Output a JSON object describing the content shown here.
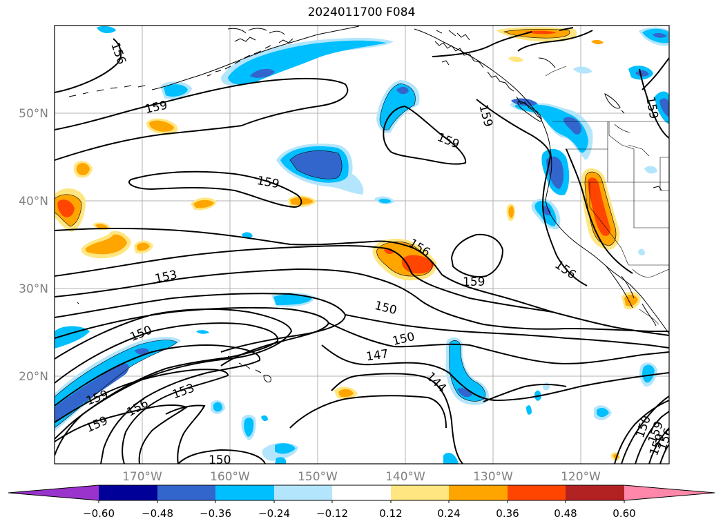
{
  "title": "2024011700 F084",
  "map": {
    "lon_range": [
      "175°E",
      "115°W"
    ],
    "lat_range": [
      "10°N",
      "60°N"
    ],
    "lat_labels": [
      "20°N",
      "30°N",
      "40°N",
      "50°N"
    ],
    "lon_labels": [
      "170°W",
      "160°W",
      "150°W",
      "140°W",
      "130°W",
      "120°W"
    ],
    "grid": true,
    "shaded_field": "anomaly",
    "contour_labels": [
      "156",
      "159",
      "159",
      "159",
      "159",
      "156",
      "159",
      "153",
      "150",
      "150",
      "150",
      "147",
      "144",
      "159",
      "156",
      "153",
      "159",
      "150",
      "156",
      "159",
      "150",
      "159",
      "156",
      "159"
    ]
  },
  "colorbar": {
    "ticks": [
      "−0.60",
      "−0.48",
      "−0.36",
      "−0.24",
      "−0.12",
      "0.12",
      "0.24",
      "0.36",
      "0.48",
      "0.60"
    ],
    "colors": [
      "#9933cc",
      "#000099",
      "#3366cc",
      "#00bfff",
      "#b3e5fc",
      "#ffffff",
      "#ffe680",
      "#ffa500",
      "#ff4500",
      "#b22222",
      "#ff88aa"
    ]
  }
}
